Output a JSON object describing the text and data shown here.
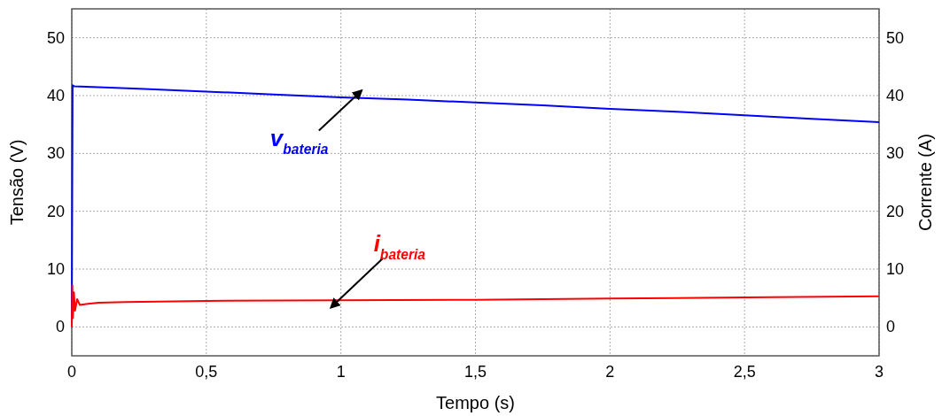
{
  "chart_data": {
    "type": "line",
    "xlabel": "Tempo (s)",
    "ylabel": "Tensão (V)",
    "y2label": "Corrente (A)",
    "xlim": [
      0,
      3
    ],
    "xticks": [
      0,
      {
        "value": 0.5,
        "label": "0,5"
      },
      1,
      {
        "value": 1.5,
        "label": "1,5"
      },
      2,
      {
        "value": 2.5,
        "label": "2,5"
      },
      3
    ],
    "ylim": [
      -5,
      55
    ],
    "yticks": [
      0,
      10,
      20,
      30,
      40,
      50
    ],
    "y2lim": [
      -5,
      55
    ],
    "y2ticks": [
      0,
      10,
      20,
      30,
      40,
      50
    ],
    "grid": true,
    "marker": "none",
    "line_style": "solid",
    "series": [
      {
        "name": "v$_{bateria}$",
        "color": "#0000ff",
        "x": [
          0,
          0.003,
          0.01,
          0.25,
          0.5,
          0.75,
          1,
          1.25,
          1.5,
          1.75,
          2,
          2.25,
          2.5,
          2.75,
          3
        ],
        "values": [
          0,
          41.8,
          41.6,
          41.2,
          40.7,
          40.2,
          39.7,
          39.3,
          38.8,
          38.3,
          37.7,
          37.2,
          36.6,
          36.0,
          35.4
        ]
      },
      {
        "name": "i$_{bateria}$",
        "color": "#ff0000",
        "axis": "y2",
        "x": [
          0,
          0.002,
          0.004,
          0.008,
          0.012,
          0.02,
          0.03,
          0.06,
          0.1,
          0.2,
          0.5,
          1,
          1.5,
          2,
          2.5,
          3
        ],
        "values": [
          0,
          7.2,
          1.5,
          6.0,
          2.8,
          4.8,
          3.8,
          4.0,
          4.2,
          4.3,
          4.5,
          4.6,
          4.7,
          4.9,
          5.1,
          5.3
        ]
      }
    ]
  }
}
